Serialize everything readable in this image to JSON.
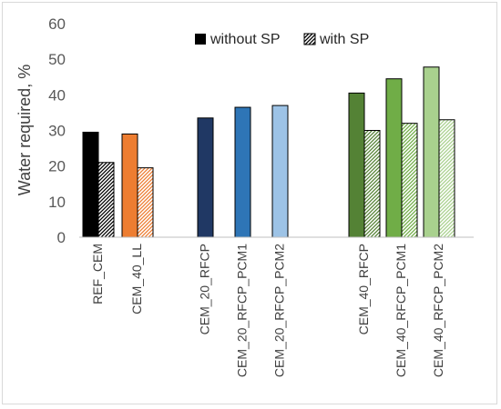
{
  "chart_data": {
    "type": "bar",
    "title": "",
    "xlabel": "",
    "ylabel": "Water required, %",
    "ylim": [
      0,
      60
    ],
    "yticks": [
      0,
      10,
      20,
      30,
      40,
      50,
      60
    ],
    "grid": false,
    "legend": {
      "placement": "top",
      "entries": [
        {
          "name": "without SP",
          "pattern": "solid"
        },
        {
          "name": "with SP",
          "pattern": "hatched"
        }
      ]
    },
    "categories": [
      "REF_CEM",
      "CEM_40_LL",
      "CEM_20_RFCP",
      "CEM_20_RFCP_PCM1",
      "CEM_20_RFCP_PCM2",
      "CEM_40_RFCP",
      "CEM_40_RFCP_PCM1",
      "CEM_40_RFCP_PCM2"
    ],
    "series": [
      {
        "name": "without SP",
        "values": [
          29.5,
          29.0,
          33.5,
          36.5,
          37.0,
          40.5,
          44.5,
          47.8
        ]
      },
      {
        "name": "with SP",
        "values": [
          21.0,
          19.5,
          null,
          null,
          null,
          30.0,
          32.0,
          33.0
        ]
      }
    ],
    "colors": [
      "#000000",
      "#ed7d31",
      "#203864",
      "#2e75b6",
      "#9dc3e6",
      "#548235",
      "#70ad47",
      "#a9d18e"
    ]
  }
}
